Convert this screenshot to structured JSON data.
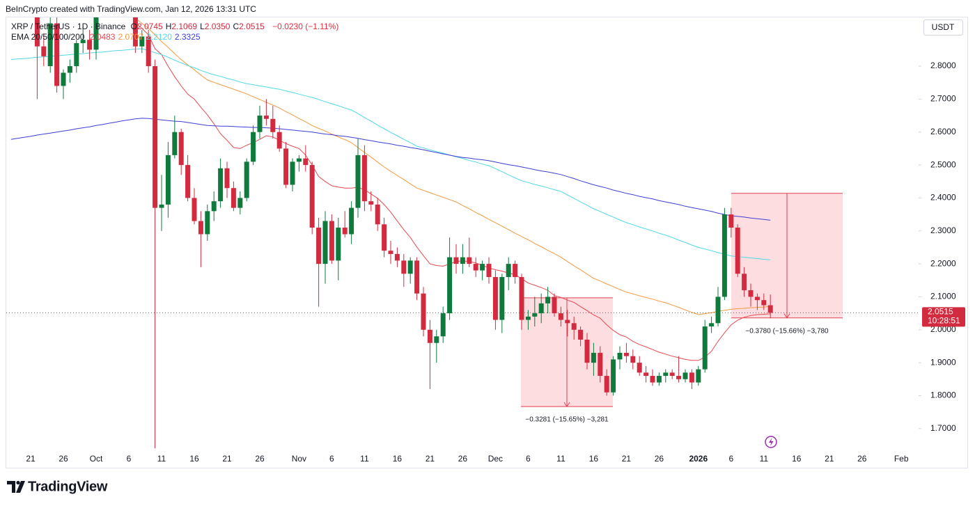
{
  "header": {
    "credit": "BeInCrypto created with TradingView.com, Jan 12, 2026 13:31 UTC",
    "logo": "TradingView"
  },
  "chart_data": {
    "type": "candlestick",
    "symbol": "XRP / TetherUS · 1D · Binance",
    "ohlc_legend": [
      {
        "key": "O",
        "value": "2.0745"
      },
      {
        "key": "H",
        "value": "2.1069"
      },
      {
        "key": "L",
        "value": "2.0350"
      },
      {
        "key": "C",
        "value": "2.0515"
      }
    ],
    "change": "−0.0230 (−1.11%)",
    "indicator": "EMA 20/50/100/200",
    "currency": "USDT",
    "countdown": "10:28:51",
    "up_color": "#0f7a3c",
    "down_color": "#d22a3e",
    "categories": [
      null,
      null,
      null,
      "21",
      null,
      null,
      null,
      null,
      "26",
      null,
      null,
      null,
      null,
      "Oct",
      null,
      null,
      null,
      null,
      "6",
      null,
      null,
      null,
      null,
      "11",
      null,
      null,
      null,
      null,
      "16",
      null,
      null,
      null,
      null,
      "21",
      null,
      null,
      null,
      null,
      "26",
      null,
      null,
      null,
      null,
      null,
      "Nov",
      null,
      null,
      null,
      null,
      "6",
      null,
      null,
      null,
      null,
      "11",
      null,
      null,
      null,
      null,
      "16",
      null,
      null,
      null,
      null,
      "21",
      null,
      null,
      null,
      null,
      "26",
      null,
      null,
      null,
      null,
      "Dec",
      null,
      null,
      null,
      null,
      "6",
      null,
      null,
      null,
      null,
      "11",
      null,
      null,
      null,
      null,
      "16",
      null,
      null,
      null,
      null,
      "21",
      null,
      null,
      null,
      null,
      "26",
      null,
      null,
      null,
      null,
      null,
      "2026",
      null,
      null,
      null,
      null,
      "6",
      null,
      null,
      null,
      null,
      "11",
      null,
      null,
      null,
      null,
      "16",
      null,
      null,
      null,
      null,
      "21",
      null,
      null,
      null,
      null,
      "26",
      null,
      null,
      null,
      null,
      null,
      "Feb"
    ],
    "open": [
      2.99,
      3.01,
      2.98,
      2.99,
      2.97,
      2.86,
      2.8,
      2.93,
      2.74,
      2.78,
      2.8,
      2.87,
      2.88,
      2.85,
      2.97,
      3.02,
      2.99,
      3.0,
      2.98,
      2.97,
      2.86,
      2.89,
      2.8,
      2.37,
      2.38,
      2.53,
      2.6,
      2.5,
      2.4,
      2.33,
      2.29,
      2.36,
      2.39,
      2.49,
      2.43,
      2.37,
      2.4,
      2.51,
      2.6,
      2.65,
      2.64,
      2.6,
      2.55,
      2.44,
      2.51,
      2.52,
      2.5,
      2.31,
      2.2,
      2.33,
      2.21,
      2.31,
      2.29,
      2.37,
      2.53,
      2.39,
      2.38,
      2.32,
      2.24,
      2.23,
      2.21,
      2.17,
      2.21,
      2.11,
      2.0,
      1.96,
      1.98,
      2.05,
      2.22,
      2.2,
      2.22,
      2.2,
      2.18,
      2.2,
      2.16,
      2.03,
      2.16,
      2.2,
      2.16,
      2.03,
      2.04,
      2.05,
      2.08,
      2.1,
      2.05,
      2.03,
      2.02,
      2.0,
      1.97,
      1.9,
      1.93,
      1.86,
      1.81,
      1.91,
      1.93,
      1.92,
      1.9,
      1.87,
      1.86,
      1.84,
      1.86,
      1.87,
      1.86,
      1.85,
      1.87,
      1.84,
      1.88,
      2.01,
      2.02,
      2.1,
      2.35,
      2.31,
      2.17,
      2.12,
      2.1,
      2.09,
      2.0745,
      null,
      null,
      null,
      null,
      null,
      null,
      null,
      null,
      null,
      null,
      null,
      null,
      null,
      null,
      null,
      null,
      null,
      null,
      null,
      null
    ],
    "high": [
      3.03,
      3.05,
      3.01,
      3.02,
      3.0,
      2.9,
      2.97,
      2.95,
      2.79,
      2.82,
      2.88,
      2.92,
      2.91,
      3.0,
      3.05,
      3.06,
      3.03,
      3.04,
      3.0,
      3.0,
      2.91,
      2.91,
      2.82,
      2.47,
      2.57,
      2.65,
      2.61,
      2.53,
      2.43,
      2.36,
      2.38,
      2.42,
      2.52,
      2.51,
      2.45,
      2.42,
      2.52,
      2.62,
      2.68,
      2.7,
      2.68,
      2.62,
      2.57,
      2.52,
      2.53,
      2.56,
      2.51,
      2.34,
      2.36,
      2.35,
      2.34,
      2.36,
      2.39,
      2.58,
      2.56,
      2.42,
      2.4,
      2.34,
      2.27,
      2.25,
      2.23,
      2.22,
      2.22,
      2.13,
      2.03,
      2.0,
      2.07,
      2.28,
      2.26,
      2.26,
      2.28,
      2.22,
      2.21,
      2.22,
      2.18,
      2.17,
      2.22,
      2.21,
      2.17,
      2.06,
      2.1,
      2.11,
      2.13,
      2.11,
      2.07,
      2.06,
      2.04,
      2.01,
      1.99,
      1.96,
      1.95,
      1.88,
      1.92,
      1.95,
      1.96,
      1.94,
      1.92,
      1.89,
      1.88,
      1.87,
      1.88,
      1.88,
      1.92,
      1.88,
      1.88,
      1.89,
      2.03,
      2.04,
      2.13,
      2.37,
      2.37,
      2.32,
      2.19,
      2.14,
      2.11,
      2.11,
      2.1069,
      null,
      null,
      null,
      null,
      null,
      null,
      null,
      null,
      null,
      null,
      null,
      null,
      null,
      null,
      null,
      null,
      null,
      null,
      null,
      null
    ],
    "low": [
      2.96,
      2.97,
      2.95,
      2.96,
      2.7,
      2.8,
      2.78,
      2.72,
      2.7,
      2.75,
      2.78,
      2.84,
      2.82,
      2.82,
      2.95,
      2.97,
      2.96,
      2.97,
      2.95,
      2.84,
      2.84,
      2.78,
      1.64,
      2.3,
      2.34,
      2.52,
      2.47,
      2.39,
      2.32,
      2.19,
      2.27,
      2.33,
      2.37,
      2.4,
      2.36,
      2.35,
      2.39,
      2.5,
      2.58,
      2.62,
      2.58,
      2.54,
      2.43,
      2.42,
      2.48,
      2.48,
      2.29,
      2.07,
      2.14,
      2.2,
      2.15,
      2.28,
      2.26,
      2.34,
      2.36,
      2.36,
      2.3,
      2.22,
      2.2,
      2.19,
      2.13,
      2.14,
      2.09,
      1.98,
      1.82,
      1.9,
      1.96,
      2.03,
      2.17,
      2.17,
      2.19,
      2.16,
      2.15,
      2.14,
      2.0,
      1.99,
      2.12,
      2.14,
      2.0,
      2.0,
      2.01,
      2.02,
      2.05,
      2.04,
      2.01,
      1.98,
      1.97,
      1.95,
      1.88,
      1.86,
      1.84,
      1.8,
      1.8,
      1.88,
      1.9,
      1.88,
      1.86,
      1.84,
      1.83,
      1.83,
      1.84,
      1.85,
      1.84,
      1.84,
      1.82,
      1.83,
      1.87,
      1.99,
      2.01,
      2.09,
      2.28,
      2.16,
      2.1,
      2.07,
      2.06,
      2.06,
      2.035,
      null,
      null,
      null,
      null,
      null,
      null,
      null,
      null,
      null,
      null,
      null,
      null,
      null,
      null,
      null,
      null,
      null,
      null,
      null,
      null
    ],
    "close": [
      3.01,
      2.98,
      2.99,
      2.97,
      2.86,
      2.83,
      2.93,
      2.74,
      2.78,
      2.8,
      2.87,
      2.88,
      2.85,
      2.97,
      3.02,
      2.99,
      3.0,
      2.98,
      2.97,
      2.86,
      2.89,
      2.8,
      2.37,
      2.38,
      2.53,
      2.6,
      2.5,
      2.4,
      2.33,
      2.29,
      2.36,
      2.39,
      2.49,
      2.43,
      2.37,
      2.4,
      2.51,
      2.6,
      2.65,
      2.64,
      2.6,
      2.55,
      2.44,
      2.51,
      2.52,
      2.5,
      2.31,
      2.2,
      2.33,
      2.21,
      2.31,
      2.29,
      2.37,
      2.53,
      2.39,
      2.38,
      2.32,
      2.24,
      2.23,
      2.21,
      2.17,
      2.21,
      2.11,
      2.0,
      1.96,
      1.98,
      2.05,
      2.22,
      2.2,
      2.22,
      2.2,
      2.18,
      2.2,
      2.16,
      2.03,
      2.16,
      2.2,
      2.16,
      2.03,
      2.04,
      2.05,
      2.08,
      2.1,
      2.05,
      2.03,
      2.02,
      2.0,
      1.97,
      1.9,
      1.93,
      1.86,
      1.81,
      1.91,
      1.93,
      1.92,
      1.9,
      1.87,
      1.86,
      1.84,
      1.86,
      1.87,
      1.86,
      1.85,
      1.87,
      1.84,
      1.88,
      2.01,
      2.02,
      2.1,
      2.35,
      2.31,
      2.17,
      2.12,
      2.1,
      2.09,
      2.0745,
      2.0515,
      null,
      null,
      null,
      null,
      null,
      null,
      null,
      null,
      null,
      null,
      null,
      null,
      null,
      null,
      null,
      null,
      null,
      null,
      null,
      null
    ],
    "series": [
      {
        "name": "2.0483",
        "color": "#e8474f",
        "values": [
          null,
          null,
          null,
          null,
          null,
          null,
          null,
          null,
          null,
          null,
          null,
          null,
          null,
          null,
          null,
          null,
          null,
          null,
          null,
          2.93,
          2.915,
          2.895,
          2.853,
          2.835,
          2.8,
          2.768,
          2.74,
          2.715,
          2.7,
          2.675,
          2.652,
          2.625,
          2.595,
          2.575,
          2.553,
          2.55,
          2.56,
          2.568,
          2.578,
          2.589,
          2.585,
          2.575,
          2.565,
          2.557,
          2.55,
          2.53,
          2.5,
          2.465,
          2.45,
          2.437,
          2.433,
          2.43,
          2.43,
          2.432,
          2.425,
          2.412,
          2.399,
          2.38,
          2.357,
          2.33,
          2.304,
          2.28,
          2.251,
          2.225,
          2.2,
          2.195,
          2.193,
          2.2,
          2.207,
          2.209,
          2.207,
          2.203,
          2.195,
          2.188,
          2.182,
          2.178,
          2.172,
          2.167,
          2.155,
          2.142,
          2.135,
          2.128,
          2.12,
          2.104,
          2.098,
          2.09,
          2.083,
          2.07,
          2.058,
          2.045,
          2.035,
          2.015,
          1.998,
          1.985,
          1.978,
          1.965,
          1.955,
          1.948,
          1.94,
          1.932,
          1.926,
          1.92,
          1.915,
          1.91,
          1.907,
          1.907,
          1.917,
          1.935,
          1.965,
          1.991,
          2.015,
          2.029,
          2.038,
          2.043,
          2.046,
          2.047,
          2.0483,
          null,
          null,
          null,
          null,
          null,
          null,
          null,
          null,
          null,
          null,
          null,
          null,
          null,
          null,
          null,
          null,
          null,
          null,
          null,
          null
        ]
      },
      {
        "name": "2.0707",
        "color": "#f5993f",
        "values": [
          null,
          null,
          null,
          null,
          null,
          null,
          null,
          null,
          null,
          null,
          null,
          null,
          null,
          null,
          null,
          null,
          null,
          null,
          null,
          2.945,
          2.93,
          2.915,
          2.895,
          2.875,
          2.857,
          2.838,
          2.82,
          2.804,
          2.789,
          2.773,
          2.758,
          2.751,
          2.744,
          2.737,
          2.73,
          2.723,
          2.716,
          2.707,
          2.699,
          2.69,
          2.682,
          2.673,
          2.662,
          2.652,
          2.641,
          2.631,
          2.62,
          2.611,
          2.603,
          2.594,
          2.585,
          2.577,
          2.568,
          2.553,
          2.538,
          2.524,
          2.509,
          2.494,
          2.481,
          2.468,
          2.456,
          2.443,
          2.43,
          2.423,
          2.416,
          2.409,
          2.402,
          2.395,
          2.388,
          2.377,
          2.367,
          2.356,
          2.346,
          2.335,
          2.325,
          2.314,
          2.304,
          2.293,
          2.283,
          2.273,
          2.262,
          2.252,
          2.241,
          2.231,
          2.22,
          2.207,
          2.194,
          2.182,
          2.169,
          2.156,
          2.148,
          2.139,
          2.131,
          2.122,
          2.114,
          2.109,
          2.103,
          2.098,
          2.093,
          2.087,
          2.082,
          2.075,
          2.068,
          2.06,
          2.053,
          2.046,
          2.049,
          2.052,
          2.056,
          2.059,
          2.062,
          2.064,
          2.065,
          2.067,
          2.068,
          2.069,
          2.0707,
          null,
          null,
          null,
          null,
          null,
          null,
          null,
          null,
          null,
          null,
          null,
          null,
          null,
          null,
          null,
          null,
          null,
          null,
          null,
          null
        ]
      },
      {
        "name": "2.2120",
        "color": "#4fd8e6",
        "values": [
          2.82,
          2.822,
          2.823,
          2.825,
          2.827,
          2.828,
          2.83,
          2.832,
          2.833,
          2.835,
          2.837,
          2.838,
          2.84,
          2.842,
          2.843,
          2.845,
          2.847,
          2.848,
          2.85,
          2.852,
          2.853,
          2.847,
          2.841,
          2.835,
          2.827,
          2.818,
          2.81,
          2.802,
          2.795,
          2.787,
          2.78,
          2.774,
          2.769,
          2.763,
          2.758,
          2.752,
          2.747,
          2.744,
          2.74,
          2.737,
          2.733,
          2.73,
          2.725,
          2.72,
          2.715,
          2.71,
          2.705,
          2.699,
          2.692,
          2.686,
          2.68,
          2.673,
          2.667,
          2.656,
          2.644,
          2.633,
          2.621,
          2.61,
          2.599,
          2.589,
          2.578,
          2.568,
          2.557,
          2.552,
          2.546,
          2.541,
          2.536,
          2.53,
          2.525,
          2.52,
          2.514,
          2.509,
          2.503,
          2.498,
          2.489,
          2.48,
          2.47,
          2.461,
          2.452,
          2.447,
          2.441,
          2.436,
          2.431,
          2.425,
          2.42,
          2.409,
          2.399,
          2.388,
          2.378,
          2.367,
          2.359,
          2.35,
          2.342,
          2.333,
          2.325,
          2.319,
          2.312,
          2.306,
          2.3,
          2.293,
          2.287,
          2.28,
          2.272,
          2.265,
          2.257,
          2.25,
          2.245,
          2.24,
          2.234,
          2.229,
          2.224,
          2.222,
          2.22,
          2.218,
          2.216,
          2.214,
          2.212,
          null,
          null,
          null,
          null,
          null,
          null,
          null,
          null,
          null,
          null,
          null,
          null,
          null,
          null,
          null,
          null,
          null,
          null,
          null,
          null
        ]
      },
      {
        "name": "2.3325",
        "color": "#3d3dd6",
        "values": [
          2.578,
          2.581,
          2.584,
          2.587,
          2.591,
          2.594,
          2.597,
          2.6,
          2.603,
          2.606,
          2.61,
          2.613,
          2.616,
          2.62,
          2.623,
          2.627,
          2.63,
          2.634,
          2.637,
          2.64,
          2.642,
          2.641,
          2.639,
          2.637,
          2.635,
          2.633,
          2.632,
          2.629,
          2.626,
          2.623,
          2.62,
          2.619,
          2.618,
          2.618,
          2.617,
          2.616,
          2.615,
          2.614,
          2.614,
          2.613,
          2.612,
          2.61,
          2.608,
          2.606,
          2.604,
          2.602,
          2.6,
          2.597,
          2.594,
          2.592,
          2.589,
          2.587,
          2.584,
          2.581,
          2.577,
          2.574,
          2.57,
          2.567,
          2.564,
          2.56,
          2.557,
          2.553,
          2.55,
          2.546,
          2.542,
          2.538,
          2.534,
          2.53,
          2.526,
          2.523,
          2.521,
          2.518,
          2.516,
          2.513,
          2.509,
          2.505,
          2.501,
          2.498,
          2.494,
          2.49,
          2.486,
          2.482,
          2.479,
          2.475,
          2.471,
          2.465,
          2.459,
          2.452,
          2.446,
          2.44,
          2.435,
          2.43,
          2.424,
          2.419,
          2.414,
          2.41,
          2.405,
          2.401,
          2.397,
          2.392,
          2.388,
          2.384,
          2.38,
          2.375,
          2.371,
          2.367,
          2.363,
          2.359,
          2.354,
          2.35,
          2.346,
          2.344,
          2.342,
          2.339,
          2.337,
          2.335,
          2.3325,
          null,
          null,
          null,
          null,
          null,
          null,
          null,
          null,
          null,
          null,
          null,
          null,
          null,
          null,
          null,
          null,
          null,
          null,
          null,
          null
        ]
      }
    ],
    "measures": [
      {
        "high": 2.097,
        "low": 1.767,
        "label": "−0.3281 (−15.65%) −3,281"
      },
      {
        "high": 2.414,
        "low": 2.036,
        "label": "−0.3780 (−15.66%) −3,780"
      }
    ],
    "ylim": [
      1.632,
      2.948
    ],
    "yticks": [
      {
        "value": 1.7,
        "label": "1.7000"
      },
      {
        "value": 1.8,
        "label": "1.8000"
      },
      {
        "value": 1.9,
        "label": "1.9000"
      },
      {
        "value": 2.0,
        "label": "2.0000"
      },
      {
        "value": 2.1,
        "label": "2.1000"
      },
      {
        "value": 2.2,
        "label": "2.2000"
      },
      {
        "value": 2.3,
        "label": "2.3000"
      },
      {
        "value": 2.4,
        "label": "2.4000"
      },
      {
        "value": 2.5,
        "label": "2.5000"
      },
      {
        "value": 2.6,
        "label": "2.6000"
      },
      {
        "value": 2.7,
        "label": "2.7000"
      },
      {
        "value": 2.8,
        "label": "2.8000"
      }
    ]
  }
}
